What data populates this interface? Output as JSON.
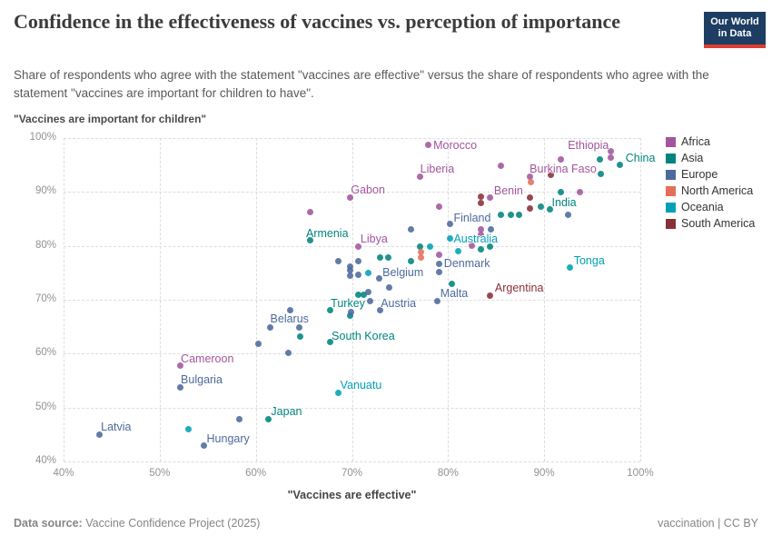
{
  "header": {
    "title": "Confidence in the effectiveness of vaccines vs. perception of importance",
    "subtitle": "Share of respondents who agree with the statement \"vaccines are effective\" versus the share of respondents who agree with the statement \"vaccines are important for children to have\".",
    "logo": {
      "line1": "Our World",
      "line2": "in Data",
      "bg_color": "#1d3d63",
      "bar_color": "#dc3e32"
    }
  },
  "axes": {
    "y_title": "\"Vaccines are important for children\"",
    "x_title": "\"Vaccines are effective\"",
    "x_ticks": [
      "40%",
      "50%",
      "60%",
      "70%",
      "80%",
      "90%",
      "100%"
    ],
    "y_ticks": [
      "40%",
      "50%",
      "60%",
      "70%",
      "80%",
      "90%",
      "100%"
    ]
  },
  "legend": {
    "items": [
      {
        "label": "Africa",
        "color": "#a2559c"
      },
      {
        "label": "Asia",
        "color": "#00847e"
      },
      {
        "label": "Europe",
        "color": "#4c6a9c"
      },
      {
        "label": "North America",
        "color": "#e56e5a"
      },
      {
        "label": "Oceania",
        "color": "#00a1b5"
      },
      {
        "label": "South America",
        "color": "#883039"
      }
    ]
  },
  "footer": {
    "source_label": "Data source:",
    "source_text": " Vaccine Confidence Project (2025)",
    "credit": "vaccination | CC BY"
  },
  "chart_data": {
    "type": "scatter",
    "title": "Confidence in the effectiveness of vaccines vs. perception of importance",
    "xlabel": "\"Vaccines are effective\"",
    "ylabel": "\"Vaccines are important for children\"",
    "xlim": [
      40,
      100
    ],
    "ylim": [
      40,
      100
    ],
    "grid": "dashed",
    "legend_position": "right",
    "series": [
      {
        "name": "Africa",
        "color": "#a2559c",
        "points": [
          {
            "x": 77.9,
            "y": 98.7,
            "label": "Morocco",
            "dx": 6,
            "dy": -7
          },
          {
            "x": 77.1,
            "y": 92.8,
            "label": "Liberia",
            "dx": 0,
            "dy": -16
          },
          {
            "x": 96.9,
            "y": 97.6,
            "label": "Ethiopia",
            "dx": -47,
            "dy": -13
          },
          {
            "x": 91.7,
            "y": 96.1,
            "label": "Burkina Faso",
            "dx": -34,
            "dy": 4
          },
          {
            "x": 69.8,
            "y": 89.0,
            "label": "Gabon",
            "dx": 1,
            "dy": -15
          },
          {
            "x": 84.4,
            "y": 89.0,
            "label": "Benin",
            "dx": 4,
            "dy": -14
          },
          {
            "x": 70.7,
            "y": 79.9,
            "label": "Libya",
            "dx": 2,
            "dy": -15
          },
          {
            "x": 52.1,
            "y": 57.7,
            "label": "Cameroon",
            "dx": 1,
            "dy": -15
          },
          {
            "x": 96.9,
            "y": 96.3
          },
          {
            "x": 85.5,
            "y": 94.9
          },
          {
            "x": 88.5,
            "y": 92.8
          },
          {
            "x": 93.7,
            "y": 89.9
          },
          {
            "x": 65.7,
            "y": 86.3
          },
          {
            "x": 79.1,
            "y": 87.2
          },
          {
            "x": 83.4,
            "y": 83.0
          },
          {
            "x": 83.4,
            "y": 82.0
          },
          {
            "x": 82.5,
            "y": 80.1
          },
          {
            "x": 79.1,
            "y": 78.3
          }
        ]
      },
      {
        "name": "Asia",
        "color": "#00847e",
        "points": [
          {
            "x": 97.9,
            "y": 95.1,
            "label": "China",
            "dx": 6,
            "dy": -14
          },
          {
            "x": 90.6,
            "y": 86.7,
            "label": "India",
            "dx": 2,
            "dy": -15
          },
          {
            "x": 65.7,
            "y": 81.0,
            "label": "Armenia",
            "dx": -5,
            "dy": -15
          },
          {
            "x": 67.7,
            "y": 68.0,
            "label": "Turkey",
            "dx": 1,
            "dy": -15
          },
          {
            "x": 67.7,
            "y": 62.1,
            "label": "South Korea",
            "dx": 2,
            "dy": -14
          },
          {
            "x": 61.3,
            "y": 47.9,
            "label": "Japan",
            "dx": 3,
            "dy": -15
          },
          {
            "x": 95.8,
            "y": 96.0
          },
          {
            "x": 95.9,
            "y": 93.3
          },
          {
            "x": 91.7,
            "y": 89.9
          },
          {
            "x": 89.7,
            "y": 87.2
          },
          {
            "x": 85.5,
            "y": 85.7
          },
          {
            "x": 86.5,
            "y": 85.7
          },
          {
            "x": 87.4,
            "y": 85.7
          },
          {
            "x": 77.1,
            "y": 79.9
          },
          {
            "x": 84.4,
            "y": 79.8
          },
          {
            "x": 83.4,
            "y": 79.3
          },
          {
            "x": 76.1,
            "y": 77.1
          },
          {
            "x": 72.9,
            "y": 77.9
          },
          {
            "x": 73.8,
            "y": 77.9
          },
          {
            "x": 80.4,
            "y": 72.9
          },
          {
            "x": 70.7,
            "y": 71.0
          },
          {
            "x": 71.2,
            "y": 71.0
          },
          {
            "x": 69.8,
            "y": 67.0
          },
          {
            "x": 64.6,
            "y": 63.1
          }
        ]
      },
      {
        "name": "Europe",
        "color": "#4c6a9c",
        "points": [
          {
            "x": 80.2,
            "y": 84.0,
            "label": "Finland",
            "dx": 4,
            "dy": -14
          },
          {
            "x": 79.1,
            "y": 76.7,
            "label": "Denmark",
            "dx": 5,
            "dy": -7
          },
          {
            "x": 72.8,
            "y": 73.9,
            "label": "Belgium",
            "dx": 4,
            "dy": -14
          },
          {
            "x": 78.9,
            "y": 69.8,
            "label": "Malta",
            "dx": 3,
            "dy": -15
          },
          {
            "x": 72.9,
            "y": 68.1,
            "label": "Austria",
            "dx": 1,
            "dy": -14
          },
          {
            "x": 61.5,
            "y": 64.9,
            "label": "Belarus",
            "dx": 0,
            "dy": -16
          },
          {
            "x": 52.1,
            "y": 53.8,
            "label": "Bulgaria",
            "dx": 1,
            "dy": -15
          },
          {
            "x": 43.7,
            "y": 44.9,
            "label": "Latvia",
            "dx": 2,
            "dy": -16
          },
          {
            "x": 54.6,
            "y": 42.9,
            "label": "Hungary",
            "dx": 3,
            "dy": -15
          },
          {
            "x": 76.1,
            "y": 83.1
          },
          {
            "x": 84.5,
            "y": 83.0
          },
          {
            "x": 92.5,
            "y": 85.7
          },
          {
            "x": 79.1,
            "y": 75.2
          },
          {
            "x": 68.6,
            "y": 77.1
          },
          {
            "x": 69.8,
            "y": 76.2
          },
          {
            "x": 69.8,
            "y": 75.4
          },
          {
            "x": 69.8,
            "y": 74.5
          },
          {
            "x": 70.7,
            "y": 77.1
          },
          {
            "x": 70.7,
            "y": 74.7
          },
          {
            "x": 71.7,
            "y": 71.5
          },
          {
            "x": 71.9,
            "y": 69.7
          },
          {
            "x": 73.9,
            "y": 72.2
          },
          {
            "x": 69.9,
            "y": 67.8
          },
          {
            "x": 63.6,
            "y": 68.0
          },
          {
            "x": 64.5,
            "y": 64.8
          },
          {
            "x": 60.3,
            "y": 61.9
          },
          {
            "x": 63.4,
            "y": 60.1
          },
          {
            "x": 58.3,
            "y": 47.9
          }
        ]
      },
      {
        "name": "North America",
        "color": "#e56e5a",
        "points": [
          {
            "x": 88.6,
            "y": 91.9
          },
          {
            "x": 77.2,
            "y": 78.8
          },
          {
            "x": 77.2,
            "y": 77.9
          }
        ]
      },
      {
        "name": "Oceania",
        "color": "#00a1b5",
        "points": [
          {
            "x": 80.2,
            "y": 81.3,
            "label": "Australia",
            "dx": 4,
            "dy": -7
          },
          {
            "x": 92.7,
            "y": 75.9,
            "label": "Tonga",
            "dx": 4,
            "dy": -15
          },
          {
            "x": 68.6,
            "y": 52.8,
            "label": "Vanuatu",
            "dx": 2,
            "dy": -15
          },
          {
            "x": 78.1,
            "y": 79.9
          },
          {
            "x": 81.1,
            "y": 79.1
          },
          {
            "x": 71.7,
            "y": 74.9
          },
          {
            "x": 53.0,
            "y": 45.9
          }
        ]
      },
      {
        "name": "South America",
        "color": "#883039",
        "points": [
          {
            "x": 84.4,
            "y": 70.8,
            "label": "Argentina",
            "dx": 5,
            "dy": -15
          },
          {
            "x": 90.7,
            "y": 93.1
          },
          {
            "x": 88.5,
            "y": 88.9
          },
          {
            "x": 88.5,
            "y": 87.0
          },
          {
            "x": 83.4,
            "y": 89.2
          },
          {
            "x": 83.4,
            "y": 87.9
          }
        ]
      }
    ]
  }
}
